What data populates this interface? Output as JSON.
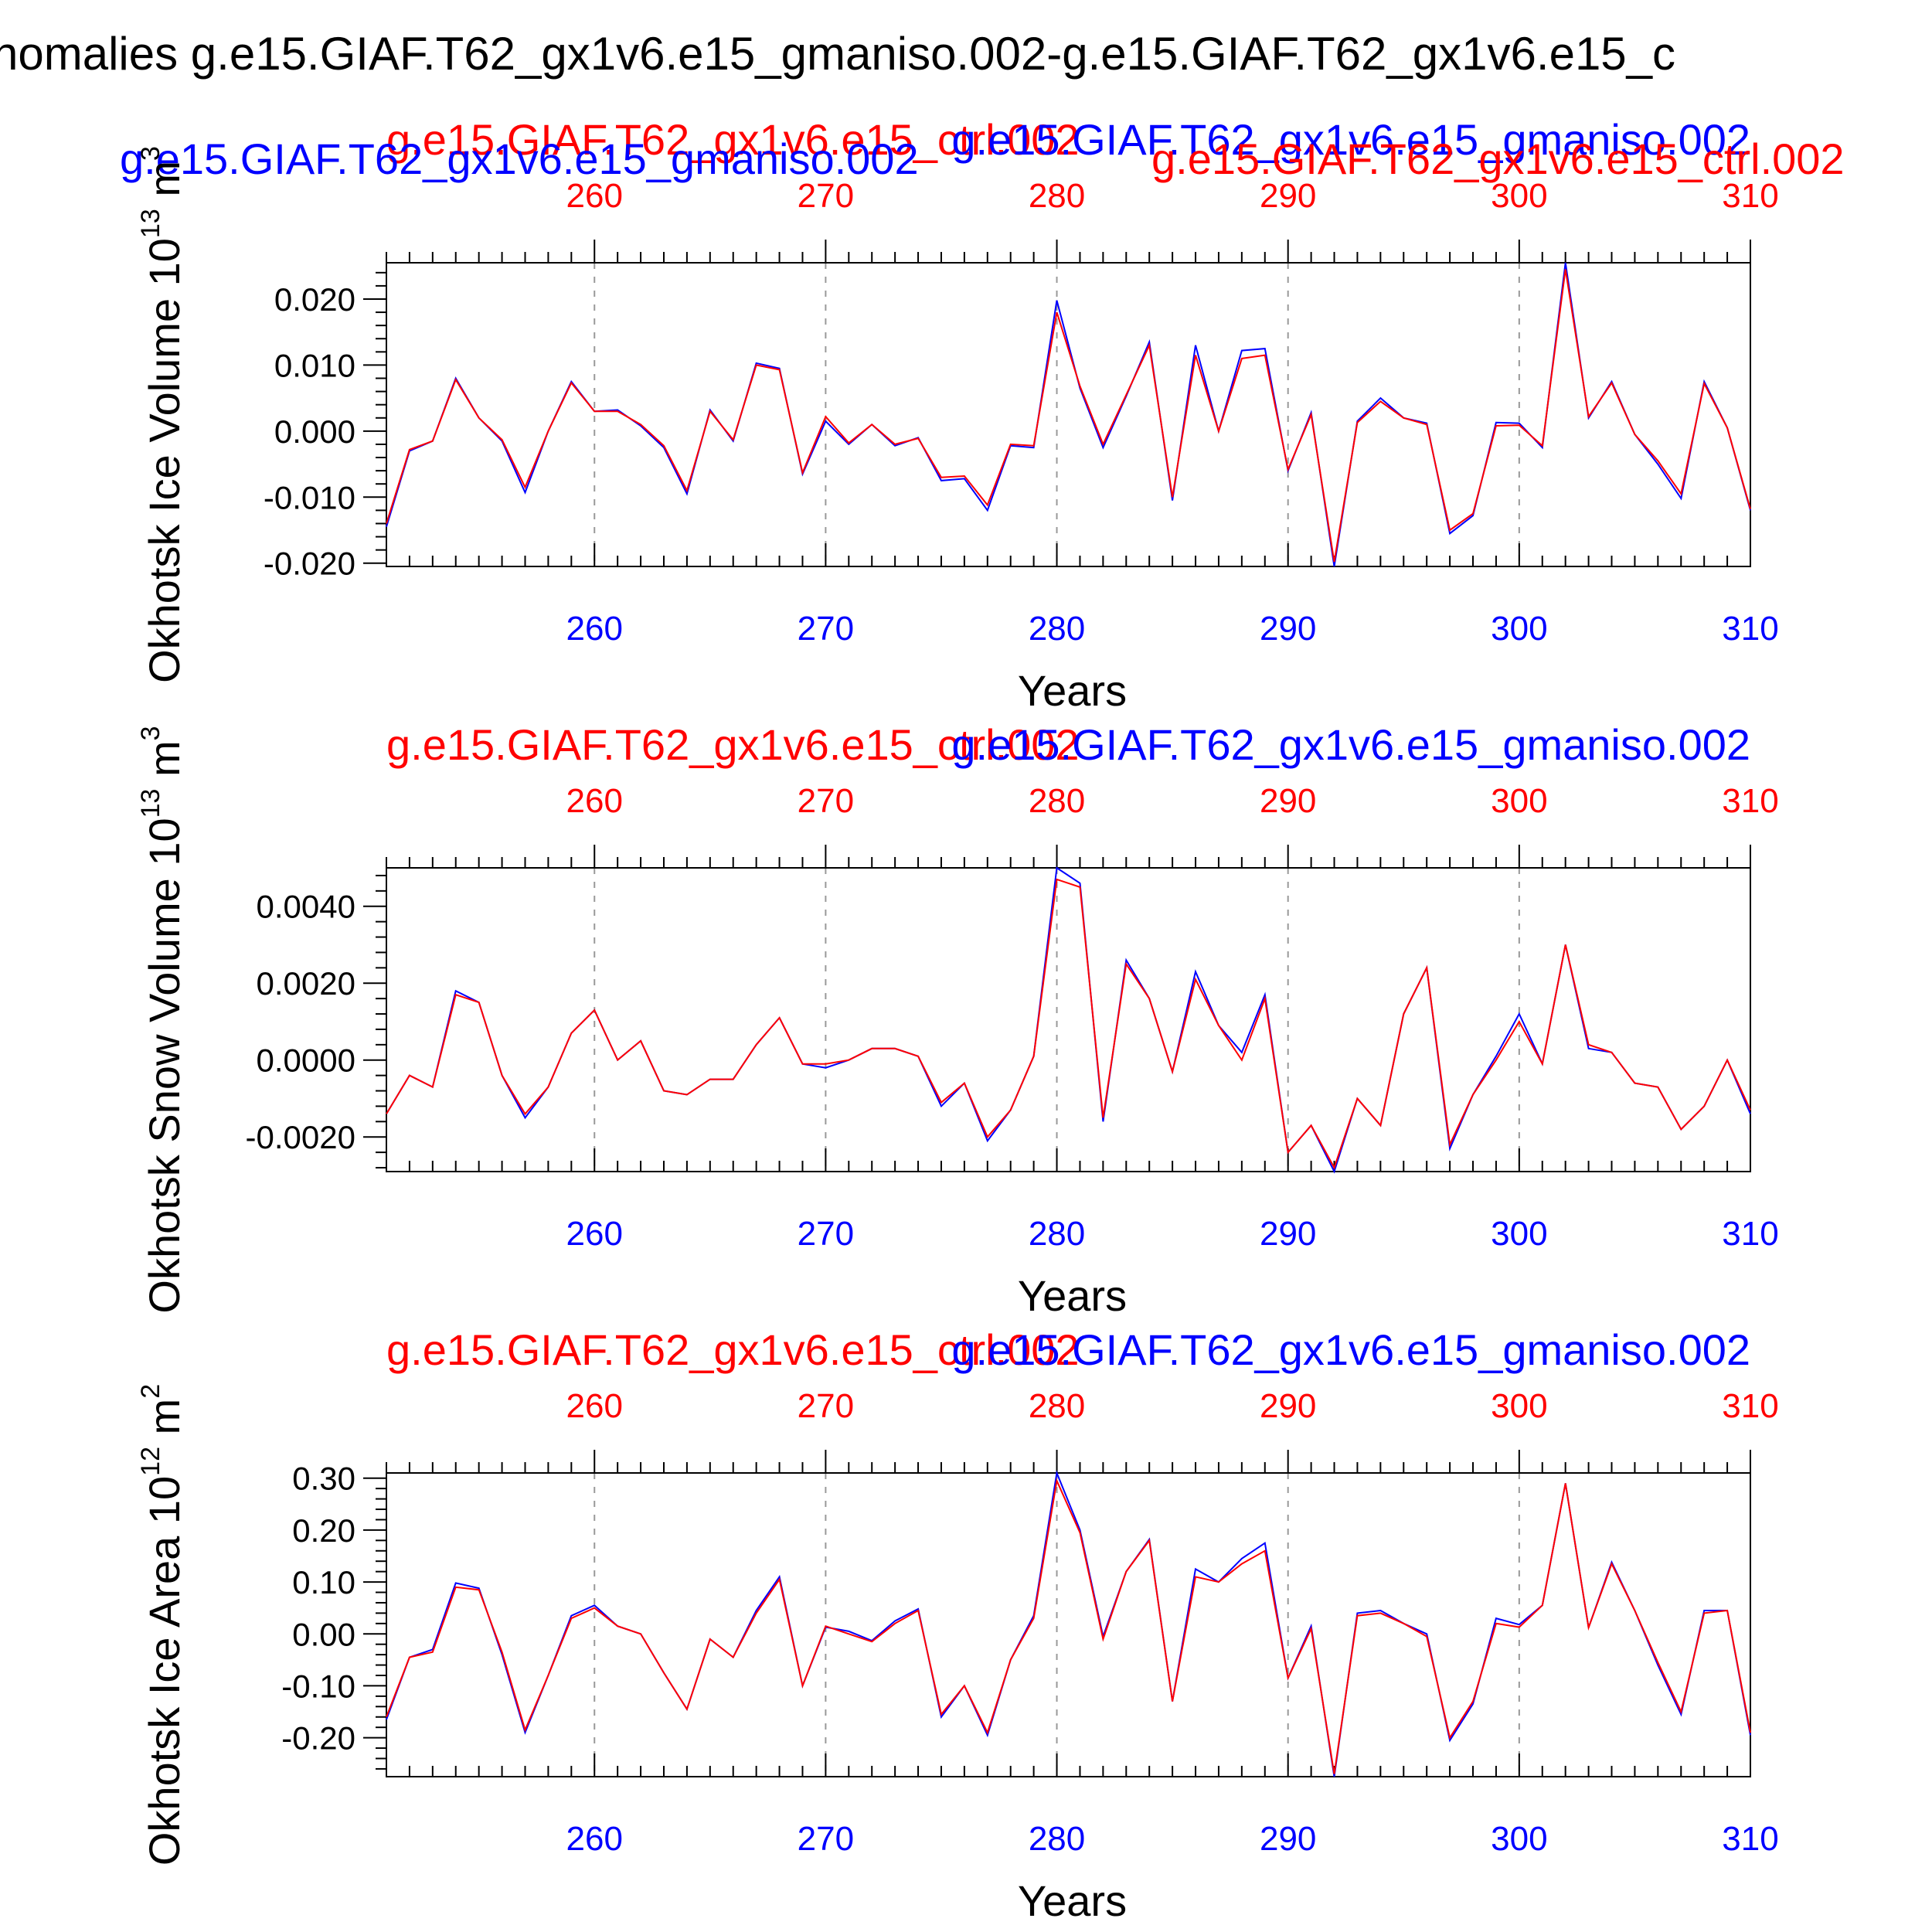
{
  "figure": {
    "title": "nomalies g.e15.GIAF.T62_gx1v6.e15_gmaniso.002-g.e15.GIAF.T62_gx1v6.e15_c"
  },
  "colors": {
    "case1": "#0000ff",
    "case2": "#ff0000",
    "text": "#000000",
    "grid": "#999999"
  },
  "chart_data": [
    {
      "type": "line",
      "ylabel": "Okhotsk Ice Volume 10",
      "yunit_exp": "13",
      "yunit_base": "m",
      "yunit_pow": "3",
      "xlabel": "Years",
      "title_left": "g.e15.GIAF.T62_gx1v6.e15_ctrl.002",
      "title_right": "g.e15.GIAF.T62_gx1v6.e15_gmaniso.002",
      "title_extra_left": "g.e15.GIAF.T62_gx1v6.e15_gmaniso.002",
      "title_extra_right": "g.e15.GIAF.T62_gx1v6.e15_ctrl.002",
      "xlim": [
        251,
        310
      ],
      "ylim": [
        -0.0205,
        0.0255
      ],
      "yticks": [
        -0.02,
        -0.01,
        0.0,
        0.01,
        0.02
      ],
      "yticklabels": [
        "-0.020",
        "-0.010",
        "0.000",
        "0.010",
        "0.020"
      ],
      "xticks": [
        260,
        270,
        280,
        290,
        300,
        310
      ],
      "xticklabels": [
        "260",
        "270",
        "280",
        "290",
        "300",
        "310"
      ],
      "top_xticklabels": [
        "260",
        "270",
        "280",
        "290",
        "300",
        "310"
      ],
      "grid_x": true,
      "series": [
        {
          "role": "case1",
          "values": [
            -0.0145,
            -0.003,
            -0.0015,
            0.008,
            0.002,
            -0.0015,
            -0.0093,
            0.0,
            0.0075,
            0.003,
            0.0032,
            0.0008,
            -0.0025,
            -0.0095,
            0.0032,
            -0.0015,
            0.0103,
            0.0095,
            -0.0065,
            0.0015,
            -0.002,
            0.001,
            -0.0022,
            -0.001,
            -0.0075,
            -0.0072,
            -0.012,
            -0.0022,
            -0.0025,
            0.0198,
            0.0065,
            -0.0025,
            0.0053,
            0.0135,
            -0.0105,
            0.013,
            0.0,
            0.0122,
            0.0125,
            -0.006,
            0.0028,
            -0.0205,
            0.0015,
            0.005,
            0.002,
            0.0012,
            -0.0155,
            -0.0128,
            0.0013,
            0.0012,
            -0.0025,
            0.0255,
            0.002,
            0.0075,
            -0.0005,
            -0.005,
            -0.0102,
            0.0075,
            0.0005,
            -0.012
          ]
        },
        {
          "role": "case2",
          "values": [
            -0.014,
            -0.0028,
            -0.0015,
            0.0078,
            0.002,
            -0.0013,
            -0.0085,
            0.0,
            0.0073,
            0.003,
            0.003,
            0.001,
            -0.0022,
            -0.009,
            0.003,
            -0.0013,
            0.01,
            0.0093,
            -0.0063,
            0.0022,
            -0.0018,
            0.001,
            -0.002,
            -0.0011,
            -0.007,
            -0.0068,
            -0.0112,
            -0.002,
            -0.0022,
            0.018,
            0.0068,
            -0.002,
            0.0055,
            0.013,
            -0.01,
            0.0115,
            0.0,
            0.011,
            0.0115,
            -0.0058,
            0.0025,
            -0.0198,
            0.0013,
            0.0045,
            0.002,
            0.001,
            -0.015,
            -0.0125,
            0.0008,
            0.0009,
            -0.0022,
            0.0245,
            0.0022,
            0.0073,
            -0.0005,
            -0.0045,
            -0.0095,
            0.0072,
            0.0005,
            -0.0118
          ]
        }
      ]
    },
    {
      "type": "line",
      "ylabel": "Okhotsk Snow Volume 10",
      "yunit_exp": "13",
      "yunit_base": "m",
      "yunit_pow": "3",
      "xlabel": "Years",
      "title_left": "g.e15.GIAF.T62_gx1v6.e15_ctrl.002",
      "title_right": "g.e15.GIAF.T62_gx1v6.e15_gmaniso.002",
      "xlim": [
        251,
        310
      ],
      "ylim": [
        -0.0029,
        0.005
      ],
      "yticks": [
        -0.002,
        0.0,
        0.002,
        0.004
      ],
      "yticklabels": [
        "-0.0020",
        "0.0000",
        "0.0020",
        "0.0040"
      ],
      "xticks": [
        260,
        270,
        280,
        290,
        300,
        310
      ],
      "xticklabels": [
        "260",
        "270",
        "280",
        "290",
        "300",
        "310"
      ],
      "top_xticklabels": [
        "260",
        "270",
        "280",
        "290",
        "300",
        "310"
      ],
      "grid_x": true,
      "series": [
        {
          "role": "case1",
          "values": [
            -0.0014,
            -0.0004,
            -0.0007,
            0.0018,
            0.0015,
            -0.0004,
            -0.0015,
            -0.0007,
            0.0007,
            0.0013,
            0.0,
            0.0005,
            -0.0008,
            -0.0009,
            -0.0005,
            -0.0005,
            0.0004,
            0.0011,
            -0.0001,
            -0.0002,
            0.0,
            0.0003,
            0.0003,
            0.0001,
            -0.0012,
            -0.0006,
            -0.0021,
            -0.0013,
            0.0001,
            0.005,
            0.0046,
            -0.0016,
            0.0026,
            0.0016,
            -0.0003,
            0.0023,
            0.0009,
            0.0002,
            0.0017,
            -0.0024,
            -0.0017,
            -0.0029,
            -0.001,
            -0.0017,
            0.0012,
            0.0024,
            -0.0023,
            -0.0009,
            0.0001,
            0.0012,
            -0.0001,
            0.003,
            0.0003,
            0.0002,
            -0.0006,
            -0.0007,
            -0.0018,
            -0.0012,
            0.0,
            -0.0014
          ]
        },
        {
          "role": "case2",
          "values": [
            -0.0014,
            -0.0004,
            -0.0007,
            0.0017,
            0.0015,
            -0.0004,
            -0.0014,
            -0.0007,
            0.0007,
            0.0013,
            0.0,
            0.0005,
            -0.0008,
            -0.0009,
            -0.0005,
            -0.0005,
            0.0004,
            0.0011,
            -0.0001,
            -0.0001,
            0.0,
            0.0003,
            0.0003,
            0.0001,
            -0.0011,
            -0.0006,
            -0.002,
            -0.0013,
            0.0001,
            0.0047,
            0.0045,
            -0.0015,
            0.0025,
            0.0016,
            -0.0003,
            0.0021,
            0.0009,
            0.0,
            0.0016,
            -0.0024,
            -0.0017,
            -0.0028,
            -0.001,
            -0.0017,
            0.0012,
            0.0024,
            -0.0022,
            -0.0009,
            0.0,
            0.001,
            -0.0001,
            0.003,
            0.0004,
            0.0002,
            -0.0006,
            -0.0007,
            -0.0018,
            -0.0012,
            0.0,
            -0.0013
          ]
        }
      ]
    },
    {
      "type": "line",
      "ylabel": "Okhotsk Ice Area 10",
      "yunit_exp": "12",
      "yunit_base": "m",
      "yunit_pow": "2",
      "xlabel": "Years",
      "title_left": "g.e15.GIAF.T62_gx1v6.e15_ctrl.002",
      "title_right": "g.e15.GIAF.T62_gx1v6.e15_gmaniso.002",
      "xlim": [
        251,
        310
      ],
      "ylim": [
        -0.275,
        0.31
      ],
      "yticks": [
        -0.2,
        -0.1,
        0.0,
        0.1,
        0.2,
        0.3
      ],
      "yticklabels": [
        "-0.20",
        "-0.10",
        "0.00",
        "0.10",
        "0.20",
        "0.30"
      ],
      "xticks": [
        260,
        270,
        280,
        290,
        300,
        310
      ],
      "xticklabels": [
        "260",
        "270",
        "280",
        "290",
        "300",
        "310"
      ],
      "top_xticklabels": [
        "260",
        "270",
        "280",
        "290",
        "300",
        "310"
      ],
      "grid_x": true,
      "series": [
        {
          "role": "case1",
          "values": [
            -0.165,
            -0.045,
            -0.03,
            0.098,
            0.088,
            -0.04,
            -0.19,
            -0.08,
            0.035,
            0.055,
            0.015,
            0.0,
            -0.075,
            -0.145,
            -0.01,
            -0.045,
            0.045,
            0.11,
            -0.1,
            0.013,
            0.005,
            -0.013,
            0.025,
            0.048,
            -0.16,
            -0.1,
            -0.195,
            -0.05,
            0.035,
            0.31,
            0.2,
            -0.005,
            0.12,
            0.182,
            -0.13,
            0.125,
            0.1,
            0.145,
            0.175,
            -0.085,
            0.015,
            -0.275,
            0.04,
            0.045,
            0.02,
            0.0,
            -0.205,
            -0.135,
            0.03,
            0.018,
            0.055,
            0.29,
            0.012,
            0.138,
            0.045,
            -0.06,
            -0.155,
            0.045,
            0.045,
            -0.195
          ]
        },
        {
          "role": "case2",
          "values": [
            -0.16,
            -0.045,
            -0.035,
            0.09,
            0.085,
            -0.035,
            -0.185,
            -0.08,
            0.03,
            0.05,
            0.015,
            0.0,
            -0.075,
            -0.145,
            -0.01,
            -0.045,
            0.04,
            0.105,
            -0.1,
            0.015,
            0.0,
            -0.015,
            0.02,
            0.045,
            -0.155,
            -0.1,
            -0.19,
            -0.05,
            0.03,
            0.295,
            0.195,
            -0.01,
            0.12,
            0.18,
            -0.13,
            0.11,
            0.1,
            0.135,
            0.16,
            -0.085,
            0.01,
            -0.27,
            0.035,
            0.04,
            0.02,
            -0.005,
            -0.2,
            -0.13,
            0.02,
            0.013,
            0.055,
            0.29,
            0.012,
            0.135,
            0.045,
            -0.055,
            -0.15,
            0.04,
            0.045,
            -0.19
          ]
        }
      ]
    }
  ]
}
